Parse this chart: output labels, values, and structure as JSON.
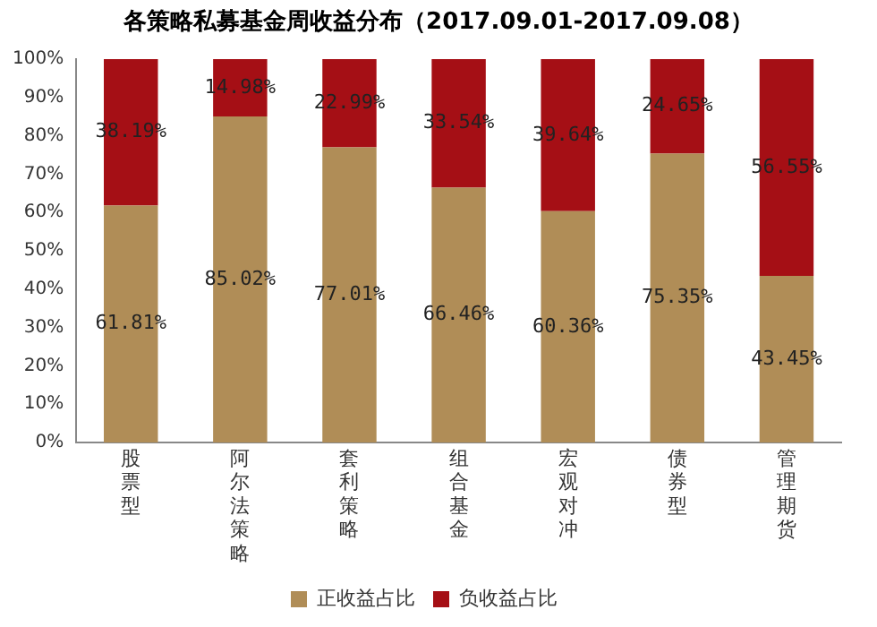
{
  "chart_data": {
    "type": "bar",
    "title": "各策略私募基金周收益分布（2017.09.01-2017.09.08）",
    "stacked": true,
    "categories": [
      "股票型",
      "阿尔法策略",
      "套利策略",
      "组合基金",
      "宏观对冲",
      "债券型",
      "管理期货"
    ],
    "series": [
      {
        "name": "正收益占比",
        "color": "#b08d57",
        "values": [
          61.81,
          85.02,
          77.01,
          66.46,
          60.36,
          75.35,
          43.45
        ],
        "value_labels": [
          "61.81%",
          "85.02%",
          "77.01%",
          "66.46%",
          "60.36%",
          "75.35%",
          "43.45%"
        ]
      },
      {
        "name": "负收益占比",
        "color": "#a50f15",
        "values": [
          38.19,
          14.98,
          22.99,
          33.54,
          39.64,
          24.65,
          56.55
        ],
        "value_labels": [
          "38.19%",
          "14.98%",
          "22.99%",
          "33.54%",
          "39.64%",
          "24.65%",
          "56.55%"
        ]
      }
    ],
    "ylim": [
      0,
      100
    ],
    "yticks": [
      {
        "value": 0,
        "label": "0%"
      },
      {
        "value": 10,
        "label": "10%"
      },
      {
        "value": 20,
        "label": "20%"
      },
      {
        "value": 30,
        "label": "30%"
      },
      {
        "value": 40,
        "label": "40%"
      },
      {
        "value": 50,
        "label": "50%"
      },
      {
        "value": 60,
        "label": "60%"
      },
      {
        "value": 70,
        "label": "70%"
      },
      {
        "value": 80,
        "label": "80%"
      },
      {
        "value": 90,
        "label": "90%"
      },
      {
        "value": 100,
        "label": "100%"
      }
    ],
    "legend": "bottom"
  }
}
